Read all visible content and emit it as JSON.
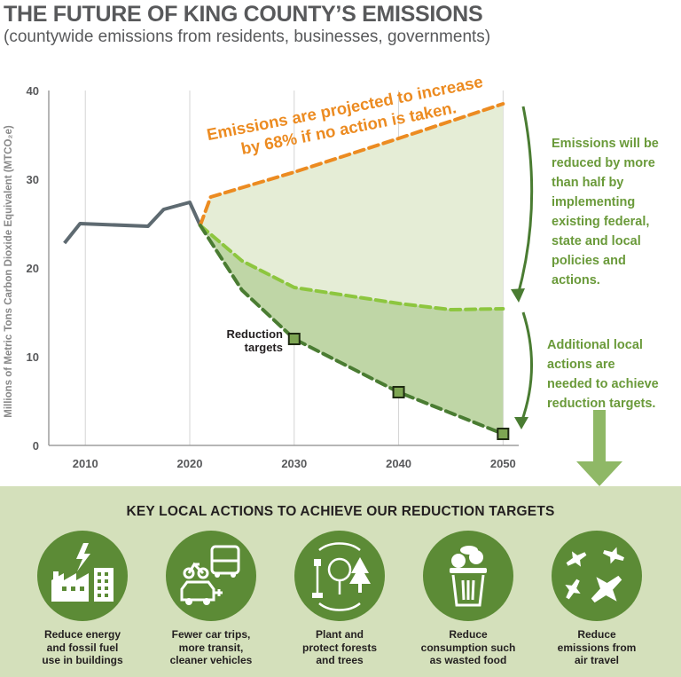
{
  "title": "THE FUTURE OF KING COUNTY’S EMISSIONS",
  "subtitle": "(countywide emissions from residents, businesses, governments)",
  "colors": {
    "historical": "#5e6a71",
    "no_action": "#ec8b21",
    "existing_policies": "#8dc63f",
    "reduction_targets": "#4a7c32",
    "text_green": "#6a9a3a",
    "panel": "#d4e0bb",
    "circle": "#5c8b36"
  },
  "chart_data": {
    "type": "line",
    "ylabel": "Millions of Metric Tons Carbon Dioxide Equivalent (MTCO₂e)",
    "xlabel": "",
    "xlim": [
      2006.5,
      2051.5
    ],
    "ylim": [
      0,
      40
    ],
    "x_ticks": [
      "2010",
      "2020",
      "2030",
      "2040",
      "2050"
    ],
    "y_ticks": [
      "0",
      "10",
      "20",
      "30",
      "40"
    ],
    "grid": true,
    "series": [
      {
        "key": "historical",
        "style": "solid",
        "x": [
          2008,
          2009.5,
          2016,
          2017.5,
          2020,
          2021
        ],
        "y": [
          22.8,
          25,
          24.7,
          26.6,
          27.4,
          24.8
        ]
      },
      {
        "key": "no_action",
        "style": "dashed",
        "x": [
          2021,
          2022,
          2030,
          2040,
          2050
        ],
        "y": [
          24.8,
          28,
          30.8,
          34.6,
          38.5
        ]
      },
      {
        "key": "existing_policies",
        "style": "dashed",
        "x": [
          2021,
          2025,
          2030,
          2040,
          2045,
          2050
        ],
        "y": [
          24.8,
          20.8,
          17.8,
          16,
          15.3,
          15.4
        ]
      },
      {
        "key": "reduction_targets",
        "style": "dashed",
        "x": [
          2021,
          2025,
          2030,
          2040,
          2050
        ],
        "y": [
          24.8,
          17.5,
          12,
          6,
          1.3
        ]
      }
    ],
    "targets": {
      "x": [
        2030,
        2040,
        2050
      ],
      "y": [
        12,
        6,
        1.3
      ],
      "label": "Reduction\ntargets"
    },
    "annotations": {
      "no_action": "Emissions are projected to increase\nby 68% if no action is taken.",
      "existing_policies": "Emissions will be\nreduced by more\nthan half by\nimplementing\nexisting federal,\nstate and local\npolicies and\nactions.",
      "additional": "Additional local\nactions are\nneeded to achieve\nreduction targets."
    }
  },
  "actions": {
    "heading": "KEY LOCAL ACTIONS TO ACHIEVE OUR REDUCTION TARGETS",
    "items": [
      {
        "icon": "factory-buildings-lightning-icon",
        "label": "Reduce energy\nand fossil fuel\nuse in buildings"
      },
      {
        "icon": "bus-bike-electric-car-icon",
        "label": "Fewer car trips,\nmore transit,\ncleaner vehicles"
      },
      {
        "icon": "hands-forest-shovel-icon",
        "label": "Plant and\nprotect forests\nand trees"
      },
      {
        "icon": "trash-food-waste-icon",
        "label": "Reduce\nconsumption such\nas wasted food"
      },
      {
        "icon": "airplanes-icon",
        "label": "Reduce\nemissions from\nair travel"
      }
    ]
  }
}
